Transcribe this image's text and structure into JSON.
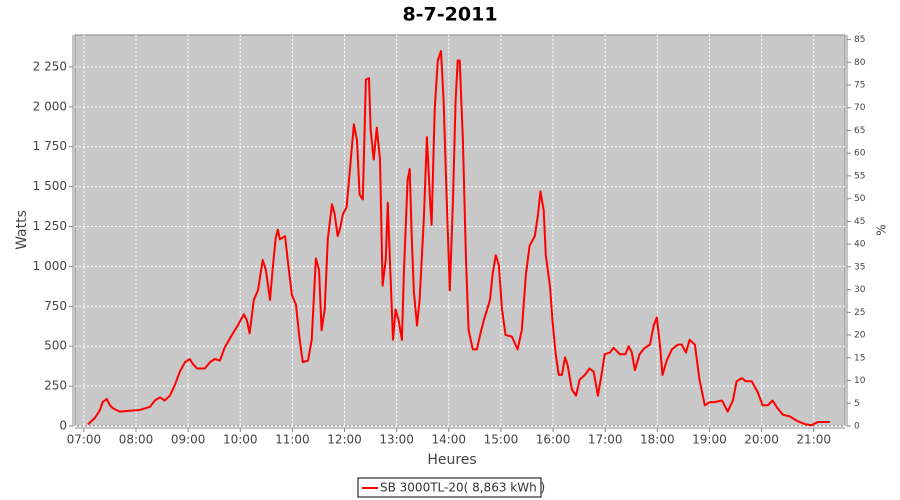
{
  "chart_data": {
    "type": "line",
    "title": "8-7-2011",
    "x_label": "Heures",
    "y_label": "Watts",
    "y2_label": "%",
    "xlim": [
      6.83,
      21.6
    ],
    "xticks": [
      {
        "value": 7,
        "label": "07:00"
      },
      {
        "value": 8,
        "label": "08:00"
      },
      {
        "value": 9,
        "label": "09:00"
      },
      {
        "value": 10,
        "label": "10:00"
      },
      {
        "value": 11,
        "label": "11:00"
      },
      {
        "value": 12,
        "label": "12:00"
      },
      {
        "value": 13,
        "label": "13:00"
      },
      {
        "value": 14,
        "label": "14:00"
      },
      {
        "value": 15,
        "label": "15:00"
      },
      {
        "value": 16,
        "label": "16:00"
      },
      {
        "value": 17,
        "label": "17:00"
      },
      {
        "value": 18,
        "label": "18:00"
      },
      {
        "value": 19,
        "label": "19:00"
      },
      {
        "value": 20,
        "label": "20:00"
      },
      {
        "value": 21,
        "label": "21:00"
      }
    ],
    "ylim": [
      0,
      2450
    ],
    "yticks": [
      0,
      250,
      500,
      750,
      {
        "value": 1000,
        "label": "1 000"
      },
      {
        "value": 1250,
        "label": "1 250"
      },
      {
        "value": 1500,
        "label": "1 500"
      },
      {
        "value": 1750,
        "label": "1 750"
      },
      {
        "value": 2000,
        "label": "2 000"
      },
      {
        "value": 2250,
        "label": "2 250"
      }
    ],
    "y2lim": [
      0,
      86
    ],
    "y2ticks": [
      0,
      5,
      10,
      15,
      20,
      25,
      30,
      35,
      40,
      45,
      50,
      55,
      60,
      65,
      70,
      75,
      80,
      85
    ],
    "grid": true,
    "legend": "bottom",
    "series": [
      {
        "name": "SB 3000TL-20( 8,863 kWh )",
        "color": "#ff0000",
        "x": [
          7.08,
          7.21,
          7.31,
          7.36,
          7.44,
          7.5,
          7.56,
          7.69,
          7.88,
          8.07,
          8.27,
          8.36,
          8.46,
          8.55,
          8.65,
          8.75,
          8.84,
          8.94,
          9.03,
          9.09,
          9.17,
          9.32,
          9.42,
          9.51,
          9.61,
          9.7,
          9.84,
          9.95,
          10.07,
          10.13,
          10.18,
          10.26,
          10.34,
          10.43,
          10.49,
          10.57,
          10.62,
          10.68,
          10.72,
          10.76,
          10.86,
          10.91,
          10.99,
          11.07,
          11.1,
          11.14,
          11.2,
          11.3,
          11.37,
          11.45,
          11.51,
          11.56,
          11.62,
          11.68,
          11.76,
          11.81,
          11.87,
          11.91,
          11.97,
          12.04,
          12.12,
          12.18,
          12.24,
          12.29,
          12.35,
          12.41,
          12.47,
          12.5,
          12.56,
          12.62,
          12.68,
          12.73,
          12.79,
          12.83,
          12.87,
          12.93,
          12.98,
          13.04,
          13.1,
          13.14,
          13.21,
          13.25,
          13.29,
          13.33,
          13.39,
          13.44,
          13.52,
          13.58,
          13.64,
          13.67,
          13.73,
          13.79,
          13.85,
          13.9,
          13.96,
          14.02,
          14.08,
          14.13,
          14.17,
          14.21,
          14.27,
          14.33,
          14.38,
          14.46,
          14.54,
          14.6,
          14.67,
          14.79,
          14.84,
          14.9,
          14.96,
          15.02,
          15.09,
          15.21,
          15.32,
          15.4,
          15.48,
          15.55,
          15.65,
          15.71,
          15.76,
          15.82,
          15.86,
          15.94,
          15.99,
          16.05,
          16.11,
          16.17,
          16.23,
          16.28,
          16.36,
          16.44,
          16.51,
          16.61,
          16.7,
          16.78,
          16.86,
          16.93,
          16.99,
          17.09,
          17.16,
          17.28,
          17.39,
          17.45,
          17.51,
          17.57,
          17.66,
          17.76,
          17.86,
          17.93,
          17.99,
          18.05,
          18.1,
          18.18,
          18.28,
          18.39,
          18.47,
          18.55,
          18.62,
          18.72,
          18.81,
          18.91,
          19.01,
          19.1,
          19.24,
          19.35,
          19.45,
          19.52,
          19.62,
          19.7,
          19.81,
          19.93,
          20.02,
          20.12,
          20.21,
          20.31,
          20.41,
          20.54,
          20.69,
          20.85,
          20.96,
          21.08,
          21.19,
          21.31
        ],
        "values": [
          10,
          50,
          100,
          150,
          170,
          130,
          110,
          90,
          95,
          100,
          120,
          160,
          180,
          160,
          190,
          260,
          340,
          400,
          420,
          390,
          360,
          360,
          400,
          420,
          410,
          490,
          570,
          630,
          700,
          660,
          580,
          790,
          850,
          1040,
          980,
          790,
          980,
          1180,
          1230,
          1170,
          1190,
          1040,
          820,
          760,
          660,
          540,
          400,
          410,
          540,
          1050,
          980,
          600,
          730,
          1170,
          1390,
          1330,
          1190,
          1230,
          1330,
          1370,
          1670,
          1890,
          1790,
          1450,
          1420,
          2170,
          2180,
          1860,
          1670,
          1870,
          1670,
          880,
          1040,
          1400,
          1040,
          540,
          730,
          660,
          540,
          980,
          1540,
          1610,
          1170,
          840,
          630,
          790,
          1290,
          1810,
          1420,
          1260,
          1980,
          2290,
          2350,
          2040,
          1420,
          850,
          1420,
          2040,
          2290,
          2290,
          1790,
          1040,
          600,
          480,
          480,
          570,
          660,
          790,
          950,
          1070,
          1010,
          730,
          570,
          560,
          480,
          600,
          950,
          1130,
          1190,
          1320,
          1470,
          1350,
          1070,
          880,
          660,
          450,
          320,
          320,
          430,
          380,
          230,
          190,
          290,
          320,
          360,
          340,
          190,
          320,
          450,
          460,
          490,
          450,
          450,
          500,
          460,
          350,
          450,
          490,
          510,
          630,
          680,
          510,
          320,
          410,
          480,
          510,
          510,
          460,
          540,
          510,
          290,
          130,
          150,
          150,
          160,
          90,
          160,
          280,
          300,
          280,
          280,
          210,
          130,
          130,
          160,
          110,
          70,
          60,
          30,
          10,
          5,
          25,
          25,
          25
        ]
      }
    ]
  }
}
